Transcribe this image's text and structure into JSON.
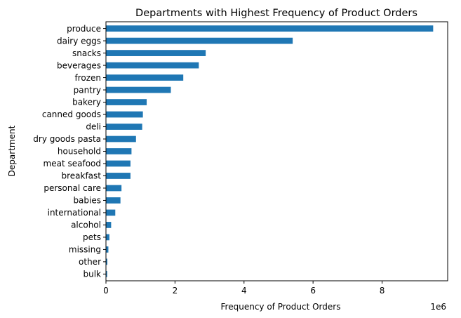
{
  "chart_data": {
    "type": "bar",
    "orientation": "horizontal",
    "title": "Departments with Highest Frequency of Product Orders",
    "xlabel": "Frequency of Product Orders",
    "ylabel": "Department",
    "x_scale_label": "1e6",
    "xlim": [
      0,
      9.9
    ],
    "x_ticks": [
      0,
      2,
      4,
      6,
      8
    ],
    "grid": false,
    "legend": "none",
    "bar_color": "#1f77b4",
    "categories": [
      "produce",
      "dairy eggs",
      "snacks",
      "beverages",
      "frozen",
      "pantry",
      "bakery",
      "canned goods",
      "deli",
      "dry goods pasta",
      "household",
      "meat seafood",
      "breakfast",
      "personal care",
      "babies",
      "international",
      "alcohol",
      "pets",
      "missing",
      "other",
      "bulk"
    ],
    "values": [
      9.48,
      5.41,
      2.89,
      2.69,
      2.24,
      1.88,
      1.18,
      1.07,
      1.05,
      0.87,
      0.74,
      0.71,
      0.71,
      0.45,
      0.42,
      0.27,
      0.15,
      0.1,
      0.07,
      0.04,
      0.035
    ]
  }
}
